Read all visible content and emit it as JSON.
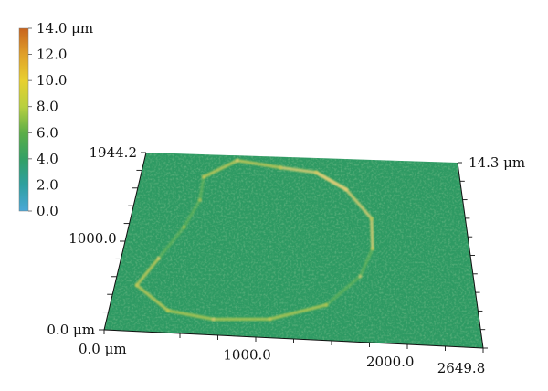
{
  "chart_data": {
    "type": "heatmap",
    "surface_style": "3d-perspective",
    "colorbar": {
      "ticks": [
        "14.0 μm",
        "12.0",
        "10.0",
        "8.0",
        "6.0",
        "4.0",
        "2.0",
        "0.0"
      ],
      "tick_values": [
        14.0,
        12.0,
        10.0,
        8.0,
        6.0,
        4.0,
        2.0,
        0.0
      ],
      "colors_top_to_bottom": [
        "#c8641e",
        "#e0a02a",
        "#e8d030",
        "#b8d040",
        "#5cae48",
        "#33a065",
        "#2fa0a0",
        "#4aa8d8"
      ],
      "range": [
        0.0,
        14.0
      ],
      "placement": "top-left"
    },
    "x_axis": {
      "ticks": [
        "0.0 μm",
        "1000.0",
        "2000.0",
        "2649.8"
      ],
      "tick_values": [
        0.0,
        1000.0,
        2000.0,
        2649.8
      ],
      "range": [
        0.0,
        2649.8
      ]
    },
    "y_axis": {
      "ticks": [
        "0.0 μm",
        "1000.0",
        "1944.2"
      ],
      "tick_values": [
        0.0,
        1000.0,
        1944.2
      ],
      "range": [
        0.0,
        1944.2
      ]
    },
    "z_axis": {
      "ticks": [
        "14.3 μm"
      ],
      "range": [
        0.0,
        14.3
      ]
    },
    "surface": {
      "base_level": 4.3,
      "base_color": "#2e9a63",
      "feature": "raised ring (crater rim) around a flat central region",
      "rim_level_range": [
        5.5,
        9.5
      ],
      "rim_highlight_colors": [
        "#c9c85a",
        "#e6cf7a",
        "#b6c652"
      ],
      "rim_path_xy": [
        [
          520,
          1700
        ],
        [
          780,
          1890
        ],
        [
          1150,
          1830
        ],
        [
          1450,
          1790
        ],
        [
          1700,
          1620
        ],
        [
          1900,
          1320
        ],
        [
          1900,
          1000
        ],
        [
          1800,
          700
        ],
        [
          1550,
          380
        ],
        [
          1150,
          200
        ],
        [
          750,
          170
        ],
        [
          420,
          240
        ],
        [
          160,
          500
        ],
        [
          280,
          800
        ],
        [
          430,
          1150
        ],
        [
          520,
          1450
        ]
      ]
    }
  }
}
